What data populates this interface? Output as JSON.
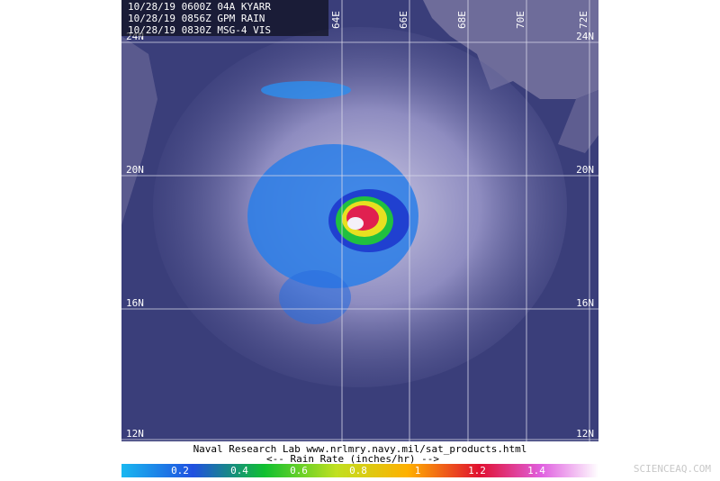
{
  "header": {
    "lines": [
      "10/28/19 0600Z 04A KYARR",
      "10/28/19 0856Z GPM RAIN",
      "10/28/19 0830Z MSG-4 VIS"
    ]
  },
  "grid": {
    "lat_labels": [
      "24N",
      "20N",
      "16N",
      "12N"
    ],
    "lon_labels": [
      "64E",
      "66E",
      "68E",
      "70E",
      "72E"
    ]
  },
  "footer": {
    "credit": "Naval Research Lab  www.nrlmry.navy.mil/sat_products.html",
    "colorbar_title": "<--   Rain Rate (inches/hr)   -->",
    "colorbar_labels": [
      "0.2",
      "0.4",
      "0.6",
      "0.8",
      "1",
      "1.2",
      "1.4"
    ]
  },
  "watermark": "SCIENCEAQ.COM"
}
